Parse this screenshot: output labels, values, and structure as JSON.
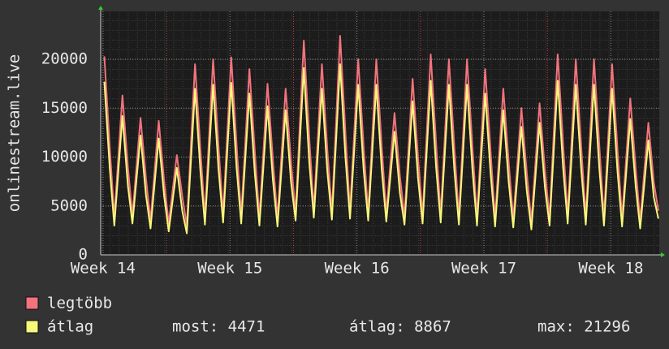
{
  "chart_data": {
    "type": "line",
    "ylabel": "onlinestream.live",
    "x": [
      0.2,
      0.5,
      0.75,
      1.2,
      1.5,
      1.75,
      2.2,
      2.5,
      2.75,
      3.2,
      3.5,
      3.75,
      4.2,
      4.5,
      4.75,
      5.2,
      5.5,
      5.75,
      6.2,
      6.5,
      6.75,
      7.2,
      7.5,
      7.75,
      8.2,
      8.5,
      8.75,
      9.2,
      9.5,
      9.75,
      10.2,
      10.5,
      10.75,
      11.2,
      11.5,
      11.75,
      12.2,
      12.5,
      12.75,
      13.2,
      13.5,
      13.75,
      14.2,
      14.5,
      14.75,
      15.2,
      15.5,
      15.75,
      16.2,
      16.5,
      16.75,
      17.2,
      17.5,
      17.75,
      18.2,
      18.5,
      18.75,
      19.2,
      19.5,
      19.75,
      20.2,
      20.5,
      20.75,
      21.2,
      21.5,
      21.75,
      22.2,
      22.5,
      22.75,
      23.2,
      23.5,
      23.75,
      24.2,
      24.5,
      24.75,
      25.2,
      25.5,
      25.75,
      26.2,
      26.5,
      26.75,
      27.2,
      27.5,
      27.75,
      28.2,
      28.5,
      28.75,
      29.2,
      29.5,
      29.75,
      30.2,
      30.5,
      30.75
    ],
    "series": [
      {
        "name": "legtöbb",
        "color": "#f2737c",
        "values": [
          20300,
          11000,
          3800,
          16300,
          9000,
          4000,
          14000,
          7800,
          3500,
          13700,
          7500,
          3200,
          10200,
          6000,
          3000,
          19500,
          10700,
          3900,
          20000,
          11000,
          4100,
          20200,
          11100,
          4000,
          19000,
          10500,
          3800,
          17500,
          9600,
          3700,
          17000,
          9400,
          4300,
          21900,
          12000,
          4600,
          19500,
          10700,
          4400,
          22400,
          12300,
          4500,
          20000,
          11000,
          4300,
          20000,
          11000,
          4200,
          14500,
          8000,
          3900,
          18000,
          9900,
          4000,
          20500,
          11300,
          4100,
          20000,
          11000,
          3900,
          20000,
          11000,
          3800,
          19000,
          10500,
          3700,
          17000,
          9400,
          3600,
          15000,
          8300,
          3400,
          15500,
          8500,
          3800,
          20500,
          11300,
          4000,
          20000,
          11000,
          3900,
          20000,
          11000,
          3800,
          19500,
          10700,
          3700,
          16000,
          8800,
          3500,
          13500,
          7400,
          4500
        ]
      },
      {
        "name": "átlag",
        "color": "#f7f77a",
        "values": [
          17700,
          8800,
          3000,
          14200,
          7100,
          3200,
          12200,
          6100,
          2700,
          11900,
          6000,
          2400,
          8900,
          4500,
          2200,
          17000,
          8500,
          3100,
          17400,
          8700,
          3300,
          17600,
          8800,
          3200,
          16500,
          8300,
          3000,
          15200,
          7600,
          2900,
          14800,
          7400,
          3500,
          19100,
          9500,
          3800,
          17000,
          8500,
          3600,
          19500,
          9800,
          3700,
          17400,
          8700,
          3500,
          17400,
          8700,
          3400,
          12600,
          6300,
          3100,
          15700,
          7800,
          3200,
          17800,
          8900,
          3300,
          17400,
          8700,
          3100,
          17400,
          8700,
          3000,
          16500,
          8300,
          2900,
          14800,
          7400,
          2800,
          13100,
          6500,
          2600,
          13500,
          6800,
          3000,
          17800,
          8900,
          3200,
          17400,
          8700,
          3100,
          17400,
          8700,
          3000,
          17000,
          8500,
          2900,
          13900,
          7000,
          2700,
          11700,
          5900,
          3700
        ]
      }
    ],
    "xlim": [
      0,
      30.8
    ],
    "xticks": [
      {
        "value": 0.13,
        "label": "Week 14"
      },
      {
        "value": 7.13,
        "label": "Week 15"
      },
      {
        "value": 14.13,
        "label": "Week 16"
      },
      {
        "value": 21.13,
        "label": "Week 17"
      },
      {
        "value": 28.13,
        "label": "Week 18"
      }
    ],
    "major_grid_x": [
      3.63,
      10.63,
      17.63,
      24.63
    ],
    "ylim": [
      0,
      24900
    ],
    "yticks": [
      0,
      5000,
      10000,
      15000,
      20000
    ],
    "grid": true,
    "stats": [
      "most: 4471",
      "átlag: 8867",
      "max: 21296"
    ]
  }
}
